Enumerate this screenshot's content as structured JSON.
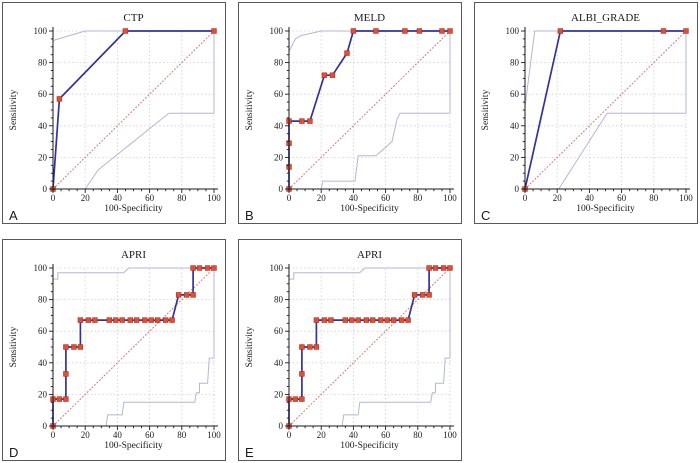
{
  "figure": {
    "background": "#ffffff",
    "panel_border_color": "#58585a"
  },
  "colors": {
    "roc": "#32329e",
    "marker_fill": "#e84b2d",
    "marker_stroke": "#a03323",
    "ci": "#b5b5de",
    "diagonal": "#dd7070",
    "grid": "#cbcbcb",
    "axis": "#1a1a1a",
    "text": "#1a1a1a"
  },
  "chart_data": [
    {
      "type": "line",
      "panel_letter": "A",
      "title": "CTP",
      "xlabel": "100-Specificity",
      "ylabel": "Sensitivity",
      "xlim": [
        0,
        100
      ],
      "ylim": [
        0,
        100
      ],
      "ticks": [
        0,
        20,
        40,
        60,
        80,
        100
      ],
      "minor_tick_step": 5,
      "grid": "dotted",
      "legend": "none",
      "series": {
        "roc_curve": [
          [
            0,
            0
          ],
          [
            4,
            57
          ],
          [
            45,
            100
          ],
          [
            100,
            100
          ]
        ],
        "markers": [
          [
            0,
            0
          ],
          [
            4,
            57
          ],
          [
            45,
            100
          ],
          [
            100,
            100
          ]
        ],
        "ci_upper": [
          [
            0,
            94
          ],
          [
            20,
            100
          ],
          [
            100,
            100
          ]
        ],
        "ci_lower": [
          [
            0,
            0
          ],
          [
            20,
            0
          ],
          [
            28,
            12
          ],
          [
            72,
            48
          ],
          [
            100,
            48
          ],
          [
            100,
            100
          ]
        ],
        "reference_diagonal": [
          [
            0,
            0
          ],
          [
            100,
            100
          ]
        ]
      }
    },
    {
      "type": "line",
      "panel_letter": "B",
      "title": "MELD",
      "xlabel": "100-Specificity",
      "ylabel": "Sensitivity",
      "xlim": [
        0,
        100
      ],
      "ylim": [
        0,
        100
      ],
      "ticks": [
        0,
        20,
        40,
        60,
        80,
        100
      ],
      "minor_tick_step": 5,
      "grid": "dotted",
      "legend": "none",
      "series": {
        "roc_curve": [
          [
            0,
            0
          ],
          [
            0,
            43
          ],
          [
            13,
            43
          ],
          [
            22,
            72
          ],
          [
            27,
            72
          ],
          [
            36,
            86
          ],
          [
            40,
            100
          ],
          [
            100,
            100
          ]
        ],
        "markers": [
          [
            0,
            0
          ],
          [
            0,
            14
          ],
          [
            0,
            29
          ],
          [
            0,
            43
          ],
          [
            8,
            43
          ],
          [
            13,
            43
          ],
          [
            22,
            72
          ],
          [
            27,
            72
          ],
          [
            36,
            86
          ],
          [
            40,
            100
          ],
          [
            54,
            100
          ],
          [
            72,
            100
          ],
          [
            81,
            100
          ],
          [
            95,
            100
          ],
          [
            100,
            100
          ]
        ],
        "ci_upper": [
          [
            0,
            87
          ],
          [
            4,
            95
          ],
          [
            7,
            97
          ],
          [
            20,
            100
          ],
          [
            100,
            100
          ]
        ],
        "ci_lower": [
          [
            0,
            0
          ],
          [
            20,
            0
          ],
          [
            21,
            5
          ],
          [
            41,
            5
          ],
          [
            43,
            21
          ],
          [
            54,
            21
          ],
          [
            64,
            30
          ],
          [
            67,
            44
          ],
          [
            69,
            48
          ],
          [
            100,
            48
          ],
          [
            100,
            100
          ]
        ],
        "reference_diagonal": [
          [
            0,
            0
          ],
          [
            100,
            100
          ]
        ]
      }
    },
    {
      "type": "line",
      "panel_letter": "C",
      "title": "ALBI_GRADE",
      "xlabel": "100-Specificity",
      "ylabel": "Sensitivity",
      "xlim": [
        0,
        100
      ],
      "ylim": [
        0,
        100
      ],
      "ticks": [
        0,
        20,
        40,
        60,
        80,
        100
      ],
      "minor_tick_step": 5,
      "grid": "dotted",
      "legend": "none",
      "series": {
        "roc_curve": [
          [
            0,
            0
          ],
          [
            22,
            100
          ],
          [
            100,
            100
          ]
        ],
        "markers": [
          [
            0,
            0
          ],
          [
            22,
            100
          ],
          [
            86,
            100
          ],
          [
            100,
            100
          ]
        ],
        "ci_upper": [
          [
            0,
            52
          ],
          [
            6,
            100
          ],
          [
            100,
            100
          ]
        ],
        "ci_lower": [
          [
            0,
            0
          ],
          [
            21,
            0
          ],
          [
            51,
            48
          ],
          [
            100,
            48
          ],
          [
            100,
            100
          ]
        ],
        "reference_diagonal": [
          [
            0,
            0
          ],
          [
            100,
            100
          ]
        ]
      }
    },
    {
      "type": "line",
      "panel_letter": "D",
      "title": "APRI",
      "xlabel": "100-Specificity",
      "ylabel": "Sensitivity",
      "xlim": [
        0,
        100
      ],
      "ylim": [
        0,
        100
      ],
      "ticks": [
        0,
        20,
        40,
        60,
        80,
        100
      ],
      "minor_tick_step": 5,
      "grid": "dotted",
      "legend": "none",
      "series": {
        "roc_curve": [
          [
            0,
            0
          ],
          [
            0,
            17
          ],
          [
            8,
            17
          ],
          [
            8,
            50
          ],
          [
            17,
            50
          ],
          [
            17,
            67
          ],
          [
            74,
            67
          ],
          [
            78,
            83
          ],
          [
            87,
            83
          ],
          [
            87,
            100
          ],
          [
            100,
            100
          ]
        ],
        "markers": [
          [
            0,
            0
          ],
          [
            0,
            17
          ],
          [
            4,
            17
          ],
          [
            8,
            17
          ],
          [
            8,
            33
          ],
          [
            8,
            50
          ],
          [
            13,
            50
          ],
          [
            17,
            50
          ],
          [
            17,
            67
          ],
          [
            22,
            67
          ],
          [
            26,
            67
          ],
          [
            35,
            67
          ],
          [
            39,
            67
          ],
          [
            43,
            67
          ],
          [
            48,
            67
          ],
          [
            52,
            67
          ],
          [
            57,
            67
          ],
          [
            61,
            67
          ],
          [
            65,
            67
          ],
          [
            70,
            67
          ],
          [
            74,
            67
          ],
          [
            78,
            83
          ],
          [
            83,
            83
          ],
          [
            87,
            83
          ],
          [
            87,
            100
          ],
          [
            91,
            100
          ],
          [
            96,
            100
          ],
          [
            100,
            100
          ]
        ],
        "ci_upper": [
          [
            0,
            57
          ],
          [
            0,
            93
          ],
          [
            3,
            93
          ],
          [
            3,
            97
          ],
          [
            44,
            97
          ],
          [
            47,
            100
          ],
          [
            100,
            100
          ]
        ],
        "ci_lower": [
          [
            0,
            0
          ],
          [
            33,
            0
          ],
          [
            34,
            7
          ],
          [
            43,
            7
          ],
          [
            44,
            15
          ],
          [
            88,
            15
          ],
          [
            89,
            21
          ],
          [
            91,
            21
          ],
          [
            91,
            27
          ],
          [
            96,
            27
          ],
          [
            97,
            43
          ],
          [
            100,
            43
          ],
          [
            100,
            100
          ]
        ],
        "reference_diagonal": [
          [
            0,
            0
          ],
          [
            100,
            100
          ]
        ]
      }
    },
    {
      "type": "line",
      "panel_letter": "E",
      "title": "APRI",
      "xlabel": "100-Specificity",
      "ylabel": "Sensitivity",
      "xlim": [
        0,
        100
      ],
      "ylim": [
        0,
        100
      ],
      "ticks": [
        0,
        20,
        40,
        60,
        80,
        100
      ],
      "minor_tick_step": 5,
      "grid": "dotted",
      "legend": "none",
      "series": {
        "roc_curve": [
          [
            0,
            0
          ],
          [
            0,
            17
          ],
          [
            8,
            17
          ],
          [
            8,
            50
          ],
          [
            17,
            50
          ],
          [
            17,
            67
          ],
          [
            74,
            67
          ],
          [
            78,
            83
          ],
          [
            87,
            83
          ],
          [
            87,
            100
          ],
          [
            100,
            100
          ]
        ],
        "markers": [
          [
            0,
            0
          ],
          [
            0,
            17
          ],
          [
            4,
            17
          ],
          [
            8,
            17
          ],
          [
            8,
            33
          ],
          [
            8,
            50
          ],
          [
            13,
            50
          ],
          [
            17,
            50
          ],
          [
            17,
            67
          ],
          [
            22,
            67
          ],
          [
            26,
            67
          ],
          [
            35,
            67
          ],
          [
            39,
            67
          ],
          [
            43,
            67
          ],
          [
            48,
            67
          ],
          [
            52,
            67
          ],
          [
            57,
            67
          ],
          [
            61,
            67
          ],
          [
            65,
            67
          ],
          [
            70,
            67
          ],
          [
            74,
            67
          ],
          [
            78,
            83
          ],
          [
            83,
            83
          ],
          [
            87,
            83
          ],
          [
            87,
            100
          ],
          [
            91,
            100
          ],
          [
            96,
            100
          ],
          [
            100,
            100
          ]
        ],
        "ci_upper": [
          [
            0,
            57
          ],
          [
            0,
            93
          ],
          [
            3,
            93
          ],
          [
            3,
            97
          ],
          [
            44,
            97
          ],
          [
            47,
            100
          ],
          [
            100,
            100
          ]
        ],
        "ci_lower": [
          [
            0,
            0
          ],
          [
            33,
            0
          ],
          [
            34,
            7
          ],
          [
            43,
            7
          ],
          [
            44,
            15
          ],
          [
            88,
            15
          ],
          [
            89,
            21
          ],
          [
            91,
            21
          ],
          [
            91,
            27
          ],
          [
            96,
            27
          ],
          [
            97,
            43
          ],
          [
            100,
            43
          ],
          [
            100,
            100
          ]
        ],
        "reference_diagonal": [
          [
            0,
            0
          ],
          [
            100,
            100
          ]
        ]
      }
    }
  ]
}
